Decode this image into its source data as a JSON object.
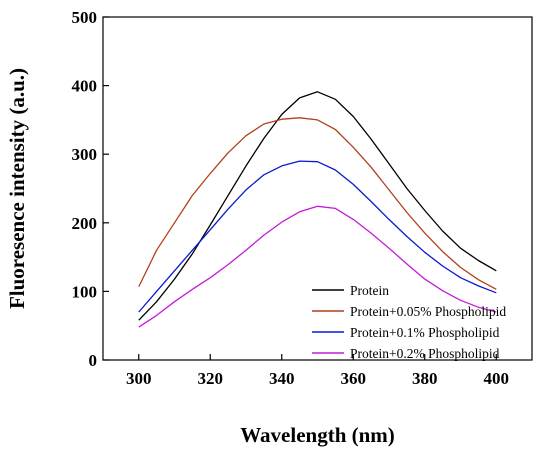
{
  "chart_data": {
    "type": "line",
    "title": "",
    "xlabel": "Wavelength (nm)",
    "ylabel": "Fluoresence intensity (a.u.)",
    "xlim": [
      290,
      410
    ],
    "ylim": [
      0,
      500
    ],
    "xticks": [
      300,
      320,
      340,
      360,
      380,
      400
    ],
    "yticks": [
      0,
      100,
      200,
      300,
      400,
      500
    ],
    "grid": false,
    "legend_position": "bottom-right",
    "x": [
      300,
      305,
      310,
      315,
      320,
      325,
      330,
      335,
      340,
      345,
      350,
      355,
      360,
      365,
      370,
      375,
      380,
      385,
      390,
      395,
      400
    ],
    "series": [
      {
        "name": "Protein",
        "color": "#000000",
        "values": [
          58,
          85,
          118,
          155,
          197,
          240,
          283,
          323,
          358,
          382,
          391,
          380,
          355,
          322,
          286,
          250,
          218,
          188,
          163,
          145,
          130
        ]
      },
      {
        "name": "Protein+0.05% Phospholipid",
        "color": "#b2401b",
        "values": [
          107,
          160,
          200,
          240,
          272,
          302,
          327,
          344,
          351,
          353,
          350,
          336,
          310,
          281,
          248,
          215,
          185,
          158,
          135,
          117,
          103
        ]
      },
      {
        "name": "Protein+0.1% Phospholipid",
        "color": "#0b1ad0",
        "values": [
          70,
          100,
          130,
          160,
          190,
          220,
          248,
          270,
          283,
          290,
          289,
          277,
          256,
          231,
          205,
          180,
          157,
          137,
          120,
          108,
          98
        ]
      },
      {
        "name": "Protein+0.2% Phospholipid",
        "color": "#c21cd6",
        "values": [
          48,
          65,
          85,
          103,
          120,
          139,
          160,
          182,
          201,
          216,
          224,
          221,
          205,
          185,
          163,
          140,
          118,
          101,
          87,
          77,
          70
        ]
      }
    ]
  }
}
